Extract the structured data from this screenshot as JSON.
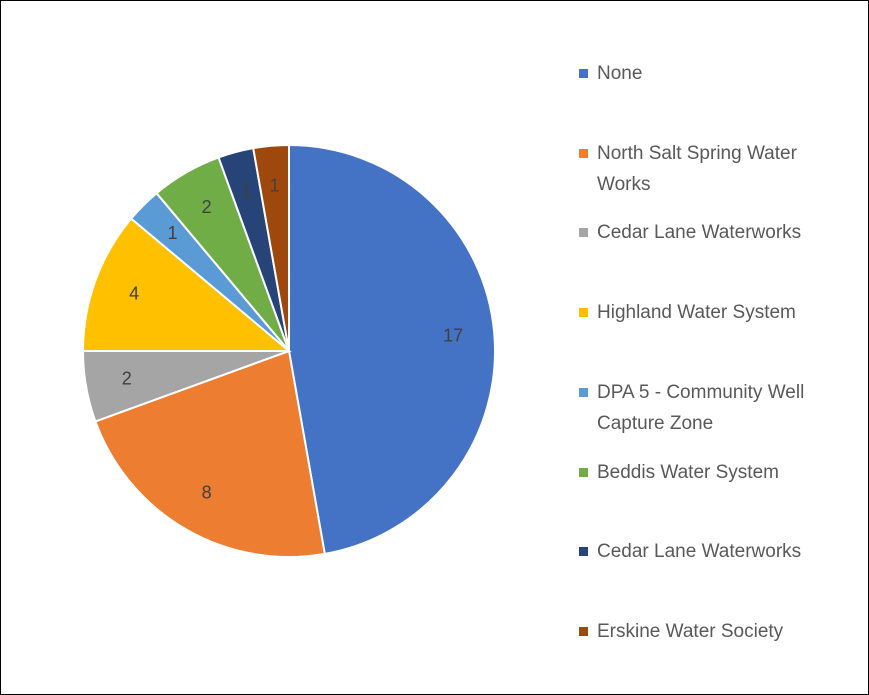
{
  "chart_data": {
    "type": "pie",
    "categories": [
      "None",
      "North Salt Spring Water Works",
      "Cedar Lane Waterworks",
      "Highland Water System",
      "DPA 5 - Community Well Capture Zone",
      "Beddis Water System",
      "Cedar Lane Waterworks",
      "Erskine Water Society"
    ],
    "values": [
      17,
      8,
      2,
      4,
      1,
      2,
      1,
      1
    ],
    "colors": [
      "#4472c4",
      "#ed7d31",
      "#a5a5a5",
      "#ffc000",
      "#5b9bd5",
      "#70ad47",
      "#264478",
      "#9e480e"
    ],
    "legend": "right"
  }
}
